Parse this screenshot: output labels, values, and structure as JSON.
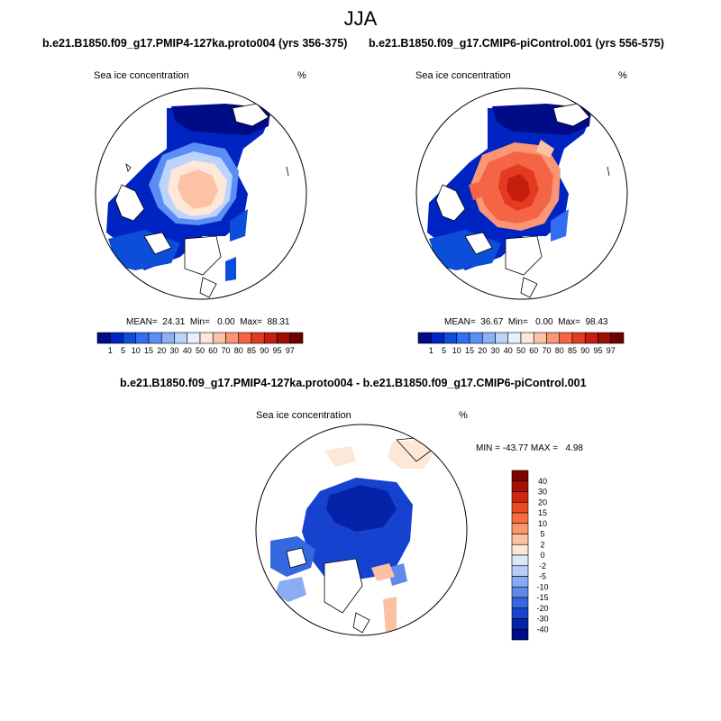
{
  "figure": {
    "title": "JJA",
    "panels": [
      {
        "title": "b.e21.B1850.f09_g17.PMIP4-127ka.proto004 (yrs 356-375)",
        "variable": "Sea ice concentration",
        "units": "%",
        "stats": {
          "mean": "24.31",
          "min": "0.00",
          "max": "88.31"
        },
        "stats_text": "MEAN=  24.31  Min=   0.00  Max=  88.31"
      },
      {
        "title": "b.e21.B1850.f09_g17.CMIP6-piControl.001 (yrs 556-575)",
        "variable": "Sea ice concentration",
        "units": "%",
        "stats": {
          "mean": "36.67",
          "min": "0.00",
          "max": "98.43"
        },
        "stats_text": "MEAN=  36.67  Min=   0.00  Max=  98.43"
      },
      {
        "title": "b.e21.B1850.f09_g17.PMIP4-127ka.proto004 - b.e21.B1850.f09_g17.CMIP6-piControl.001",
        "variable": "Sea ice concentration",
        "units": "%",
        "stats": {
          "min": "-43.77",
          "max": "4.98"
        },
        "stats_text": "MIN = -43.77 MAX =   4.98"
      }
    ]
  },
  "colorbars": {
    "concentration": {
      "labels": [
        "1",
        "5",
        "10",
        "15",
        "20",
        "30",
        "40",
        "50",
        "60",
        "70",
        "80",
        "85",
        "90",
        "95",
        "97"
      ],
      "colors": [
        "#000b87",
        "#0024c2",
        "#0b4ed9",
        "#336ef0",
        "#5a8ef5",
        "#8db0f7",
        "#bcd3fb",
        "#e6f0ff",
        "#ffe7da",
        "#fdc2a6",
        "#fa9575",
        "#f46445",
        "#e43a1f",
        "#c51d10",
        "#9b0d06",
        "#6a0200"
      ]
    },
    "difference": {
      "labels": [
        "40",
        "30",
        "20",
        "15",
        "10",
        "5",
        "2",
        "0",
        "-2",
        "-5",
        "-10",
        "-15",
        "-20",
        "-30",
        "-40"
      ],
      "colors": [
        "#7d0300",
        "#aa0e05",
        "#d02712",
        "#ec4a22",
        "#f56d3c",
        "#f9966b",
        "#fcc1a1",
        "#fde7d7",
        "#dde9fb",
        "#b7cdf7",
        "#8aacf3",
        "#5f8aeb",
        "#3567e0",
        "#1543cf",
        "#0523a8",
        "#000b86"
      ]
    }
  }
}
